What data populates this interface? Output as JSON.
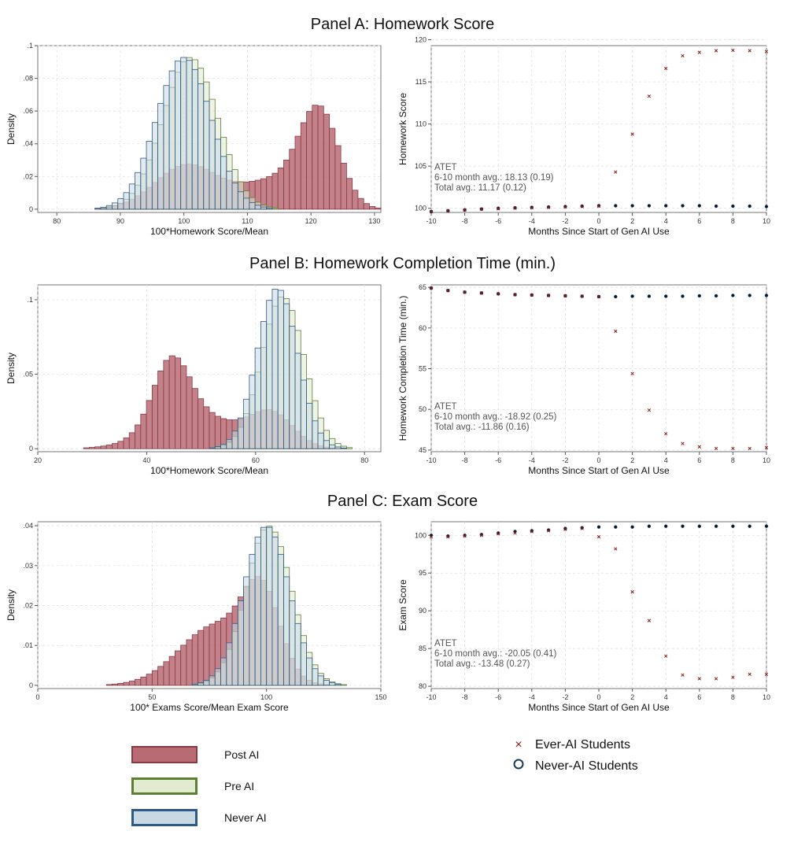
{
  "panels": [
    {
      "title": "Panel A: Homework Score"
    },
    {
      "title": "Panel B: Homework Completion Time (min.)"
    },
    {
      "title": "Panel C: Exam Score"
    }
  ],
  "colors": {
    "post_fill": "#b96b74",
    "post_stroke": "#8a3a45",
    "pre_fill": "#e2ead0",
    "pre_stroke": "#5b7f33",
    "never_fill": "#c9d9e3",
    "never_stroke": "#2e5b86",
    "ever_marker": "#8b1a1a",
    "never_marker": "#1b3a57"
  },
  "legend": {
    "post": "Post AI",
    "pre": "Pre AI",
    "never": "Never AI",
    "ever_students": "Ever-AI Students",
    "never_students": "Never-AI Students"
  },
  "chart_data": [
    {
      "type": "histogram",
      "panel": "A",
      "xlabel": "100*Homework Score/Mean",
      "ylabel": "Density",
      "xlim": [
        77,
        131
      ],
      "ylim": [
        -0.002,
        0.1
      ],
      "xticks": [
        80,
        90,
        100,
        110,
        120,
        130
      ],
      "yticks": [
        0,
        0.02,
        0.04,
        0.06,
        0.08,
        0.1
      ],
      "yticklabels": [
        "0",
        ".02",
        ".04",
        ".06",
        ".08",
        ".1"
      ],
      "series": [
        {
          "name": "Post AI",
          "distribution": [
            {
              "mean": 100.5,
              "sd": 5,
              "weight": 0.34
            },
            {
              "mean": 114,
              "sd": 5,
              "weight": 0.21
            },
            {
              "mean": 121.3,
              "sd": 3.1,
              "weight": 0.45
            }
          ]
        },
        {
          "name": "Pre AI",
          "distribution": [
            {
              "mean": 101,
              "sd": 4.3,
              "weight": 1
            }
          ]
        },
        {
          "name": "Never AI",
          "distribution": [
            {
              "mean": 100,
              "sd": 4.3,
              "weight": 1
            }
          ]
        }
      ]
    },
    {
      "type": "scatter",
      "panel": "A",
      "xlabel": "Months Since Start of Gen AI Use",
      "ylabel": "Homework Score",
      "xlim": [
        -10,
        10
      ],
      "ylim": [
        99.5,
        119.3
      ],
      "xticks": [
        -10,
        -8,
        -6,
        -4,
        -2,
        0,
        2,
        4,
        6,
        8,
        10
      ],
      "yticks": [
        100,
        105,
        110,
        115,
        120
      ],
      "annotation": [
        "ATET",
        "6-10 month avg.: 18.13 (0.19)",
        "Total avg.: 11.17 (0.12)"
      ],
      "x": [
        -10,
        -9,
        -8,
        -7,
        -6,
        -5,
        -4,
        -3,
        -2,
        -1,
        0,
        1,
        2,
        3,
        4,
        5,
        6,
        7,
        8,
        9,
        10
      ],
      "series": [
        {
          "name": "Ever-AI Students",
          "y": [
            99.6,
            99.7,
            99.8,
            99.9,
            99.95,
            100.0,
            100.05,
            100.1,
            100.15,
            100.2,
            100.25,
            104.3,
            108.8,
            113.3,
            116.6,
            118.1,
            118.5,
            118.7,
            118.75,
            118.7,
            118.6
          ]
        },
        {
          "name": "Never-AI Students",
          "y": [
            99.6,
            99.7,
            99.8,
            99.9,
            100.0,
            100.05,
            100.1,
            100.15,
            100.2,
            100.25,
            100.3,
            100.3,
            100.3,
            100.3,
            100.3,
            100.3,
            100.3,
            100.25,
            100.25,
            100.25,
            100.2
          ]
        }
      ]
    },
    {
      "type": "histogram",
      "panel": "B",
      "xlabel": "100*Homework Score/Mean",
      "ylabel": "Density",
      "xlim": [
        20,
        83
      ],
      "ylim": [
        -0.002,
        0.11
      ],
      "xticks": [
        20,
        40,
        60,
        80
      ],
      "yticks": [
        0,
        0.05,
        0.1
      ],
      "yticklabels": [
        "0",
        ".05",
        ".1"
      ],
      "series": [
        {
          "name": "Post AI",
          "distribution": [
            {
              "mean": 44.5,
              "sd": 3.3,
              "weight": 0.36
            },
            {
              "mean": 49,
              "sd": 7.5,
              "weight": 0.42
            },
            {
              "mean": 63,
              "sd": 4,
              "weight": 0.22
            }
          ]
        },
        {
          "name": "Pre AI",
          "distribution": [
            {
              "mean": 65,
              "sd": 3.9,
              "weight": 1
            }
          ]
        },
        {
          "name": "Never AI",
          "distribution": [
            {
              "mean": 64,
              "sd": 3.7,
              "weight": 1
            }
          ]
        }
      ]
    },
    {
      "type": "scatter",
      "panel": "B",
      "xlabel": "Months Since Start of Gen AI Use",
      "ylabel": "Homework Completion Time (min.)",
      "xlim": [
        -10,
        10
      ],
      "ylim": [
        44.8,
        65.3
      ],
      "xticks": [
        -10,
        -8,
        -6,
        -4,
        -2,
        0,
        2,
        4,
        6,
        8,
        10
      ],
      "yticks": [
        45,
        50,
        55,
        60,
        65
      ],
      "annotation": [
        "ATET",
        "6-10 month avg.: -18.92 (0.25)",
        "Total avg.: -11.86 (0.16)"
      ],
      "x": [
        -10,
        -9,
        -8,
        -7,
        -6,
        -5,
        -4,
        -3,
        -2,
        -1,
        0,
        1,
        2,
        3,
        4,
        5,
        6,
        7,
        8,
        9,
        10
      ],
      "series": [
        {
          "name": "Ever-AI Students",
          "y": [
            64.9,
            64.6,
            64.4,
            64.3,
            64.2,
            64.1,
            64.05,
            64.0,
            63.95,
            63.9,
            63.85,
            59.6,
            54.4,
            49.9,
            47.0,
            45.8,
            45.4,
            45.2,
            45.2,
            45.2,
            45.3
          ]
        },
        {
          "name": "Never-AI Students",
          "y": [
            64.9,
            64.6,
            64.4,
            64.3,
            64.2,
            64.1,
            64.05,
            64.0,
            63.95,
            63.9,
            63.85,
            63.85,
            63.9,
            63.9,
            63.9,
            63.9,
            63.95,
            63.95,
            64.0,
            64.0,
            64.0
          ]
        }
      ]
    },
    {
      "type": "histogram",
      "panel": "C",
      "xlabel": "100* Exams Score/Mean Exam Score",
      "ylabel": "Density",
      "xlim": [
        0,
        150
      ],
      "ylim": [
        -0.0008,
        0.041
      ],
      "xticks": [
        0,
        50,
        100,
        150
      ],
      "yticks": [
        0,
        0.01,
        0.02,
        0.03,
        0.04
      ],
      "yticklabels": [
        "0",
        ".01",
        ".02",
        ".03",
        ".04"
      ],
      "series": [
        {
          "name": "Post AI",
          "distribution": [
            {
              "mean": 78,
              "sd": 16,
              "weight": 0.6
            },
            {
              "mean": 98,
              "sd": 8,
              "weight": 0.4
            }
          ]
        },
        {
          "name": "Pre AI",
          "distribution": [
            {
              "mean": 101,
              "sd": 10,
              "weight": 1
            }
          ]
        },
        {
          "name": "Never AI",
          "distribution": [
            {
              "mean": 100,
              "sd": 10,
              "weight": 1
            }
          ]
        }
      ]
    },
    {
      "type": "scatter",
      "panel": "C",
      "xlabel": "Months Since Start of Gen AI Use",
      "ylabel": "Exam Score",
      "xlim": [
        -10,
        10
      ],
      "ylim": [
        79.7,
        101.8
      ],
      "xticks": [
        -10,
        -8,
        -6,
        -4,
        -2,
        0,
        2,
        4,
        6,
        8,
        10
      ],
      "yticks": [
        80,
        85,
        90,
        95,
        100
      ],
      "annotation": [
        "ATET",
        "6-10 month avg.: -20.05 (0.41)",
        "Total avg.: -13.48 (0.27)"
      ],
      "x": [
        -10,
        -9,
        -8,
        -7,
        -6,
        -5,
        -4,
        -3,
        -2,
        -1,
        0,
        1,
        2,
        3,
        4,
        5,
        6,
        7,
        8,
        9,
        10
      ],
      "series": [
        {
          "name": "Ever-AI Students",
          "y": [
            99.8,
            99.8,
            99.9,
            100.0,
            100.2,
            100.3,
            100.5,
            100.6,
            100.8,
            100.9,
            99.8,
            98.2,
            92.5,
            88.7,
            84.0,
            81.5,
            81.0,
            81.0,
            81.2,
            81.6,
            81.6
          ]
        },
        {
          "name": "Never-AI Students",
          "y": [
            100.0,
            99.9,
            100.0,
            100.1,
            100.3,
            100.5,
            100.6,
            100.7,
            100.9,
            101.0,
            101.1,
            101.1,
            101.1,
            101.2,
            101.2,
            101.2,
            101.2,
            101.2,
            101.2,
            101.2,
            101.2
          ]
        }
      ]
    }
  ]
}
